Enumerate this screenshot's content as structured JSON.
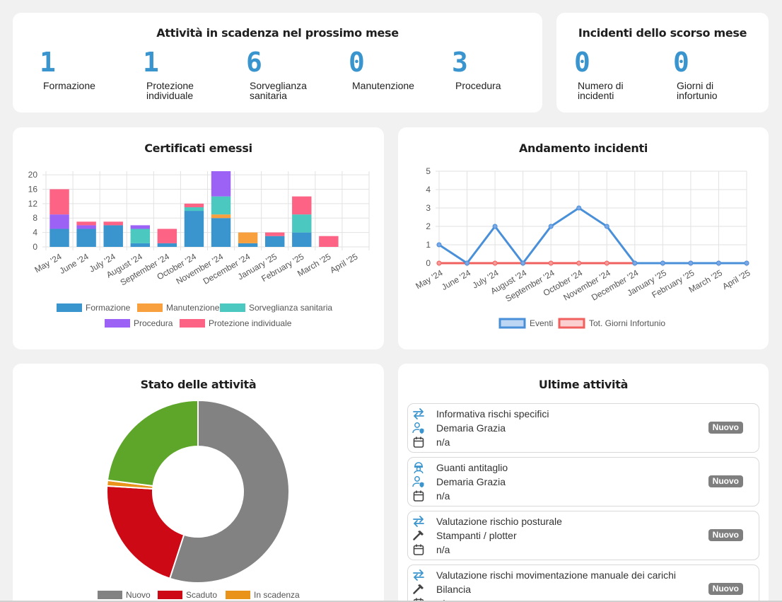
{
  "colors": {
    "accent": "#3a95cf",
    "formazione": "#3a95cf",
    "manutenzione": "#f7a03d",
    "sorveglianza": "#4bc8c0",
    "procedura": "#9c62f6",
    "protezione": "#fc6384",
    "nuovo": "#828282",
    "scaduto": "#cc0914",
    "in_scadenza": "#e9931b",
    "completato": "#5ea62a",
    "badge": "#7f7f7f"
  },
  "upcoming": {
    "title": "Attività in scadenza nel prossimo mese",
    "stats": [
      {
        "value": "1",
        "label": "Formazione"
      },
      {
        "value": "1",
        "label": "Protezione individuale"
      },
      {
        "value": "6",
        "label": "Sorveglianza sanitaria"
      },
      {
        "value": "0",
        "label": "Manutenzione"
      },
      {
        "value": "3",
        "label": "Procedura"
      }
    ]
  },
  "incidents_last_month": {
    "title": "Incidenti dello scorso mese",
    "stats": [
      {
        "value": "0",
        "label": "Numero di incidenti"
      },
      {
        "value": "0",
        "label": "Giorni di infortunio"
      }
    ]
  },
  "chart_data": [
    {
      "type": "bar",
      "title": "Certificati emessi",
      "categories": [
        "May '24",
        "June '24",
        "July '24",
        "August '24",
        "September '24",
        "October '24",
        "November '24",
        "December '24",
        "January '25",
        "February '25",
        "March '25",
        "April '25"
      ],
      "stacked": true,
      "ylim": [
        0,
        21
      ],
      "yticks": [
        0,
        4,
        8,
        12,
        16,
        20
      ],
      "legend_position": "bottom",
      "grid": true,
      "series": [
        {
          "name": "Formazione",
          "values": [
            5,
            5,
            6,
            1,
            1,
            10,
            8,
            1,
            3,
            4,
            0,
            0
          ]
        },
        {
          "name": "Manutenzione",
          "values": [
            0,
            0,
            0,
            0,
            0,
            0,
            1,
            3,
            0,
            0,
            0,
            0
          ]
        },
        {
          "name": "Sorveglianza sanitaria",
          "values": [
            0,
            0,
            0,
            4,
            0,
            1,
            5,
            0,
            0,
            5,
            0,
            0
          ]
        },
        {
          "name": "Procedura",
          "values": [
            4,
            1,
            0,
            1,
            0,
            0,
            7,
            0,
            0,
            0,
            0,
            0
          ]
        },
        {
          "name": "Protezione individuale",
          "values": [
            7,
            1,
            1,
            0,
            4,
            1,
            0,
            0,
            1,
            5,
            3,
            0
          ]
        }
      ]
    },
    {
      "type": "line",
      "title": "Andamento incidenti",
      "categories": [
        "May '24",
        "June '24",
        "July '24",
        "August '24",
        "September '24",
        "October '24",
        "November '24",
        "December '24",
        "January '25",
        "February '25",
        "March '25",
        "April '25"
      ],
      "ylim": [
        0,
        5
      ],
      "yticks": [
        0,
        1,
        2,
        3,
        4,
        5
      ],
      "legend_position": "bottom",
      "grid": true,
      "series": [
        {
          "name": "Eventi",
          "values": [
            1,
            0,
            2,
            0,
            2,
            3,
            2,
            0,
            0,
            0,
            0,
            0
          ]
        },
        {
          "name": "Tot. Giorni Infortunio",
          "values": [
            0,
            0,
            0,
            0,
            0,
            0,
            0,
            0,
            0,
            0,
            0,
            0
          ]
        }
      ]
    },
    {
      "type": "pie",
      "title": "Stato delle attività",
      "donut": true,
      "legend_position": "bottom",
      "labels": [
        "Nuovo",
        "Scaduto",
        "In scadenza",
        ""
      ],
      "values": [
        55,
        21,
        1,
        23
      ]
    }
  ],
  "recent": {
    "title": "Ultime attività",
    "items": [
      {
        "type_icon": "arrows-exchange-icon",
        "name": "Informativa rischi specifici",
        "subject_icon": "user-shield-icon",
        "subject": "Demaria Grazia",
        "date": "n/a",
        "status": "Nuovo"
      },
      {
        "type_icon": "worker-icon",
        "name": "Guanti antitaglio",
        "subject_icon": "user-shield-icon",
        "subject": "Demaria Grazia",
        "date": "n/a",
        "status": "Nuovo"
      },
      {
        "type_icon": "arrows-exchange-icon",
        "name": "Valutazione rischio posturale",
        "subject_icon": "hammer-icon",
        "subject": "Stampanti / plotter",
        "date": "n/a",
        "status": "Nuovo"
      },
      {
        "type_icon": "arrows-exchange-icon",
        "name": "Valutazione rischi movimentazione manuale dei carichi",
        "subject_icon": "hammer-icon",
        "subject": "Bilancia",
        "date": "n/a",
        "status": "Nuovo"
      }
    ]
  }
}
